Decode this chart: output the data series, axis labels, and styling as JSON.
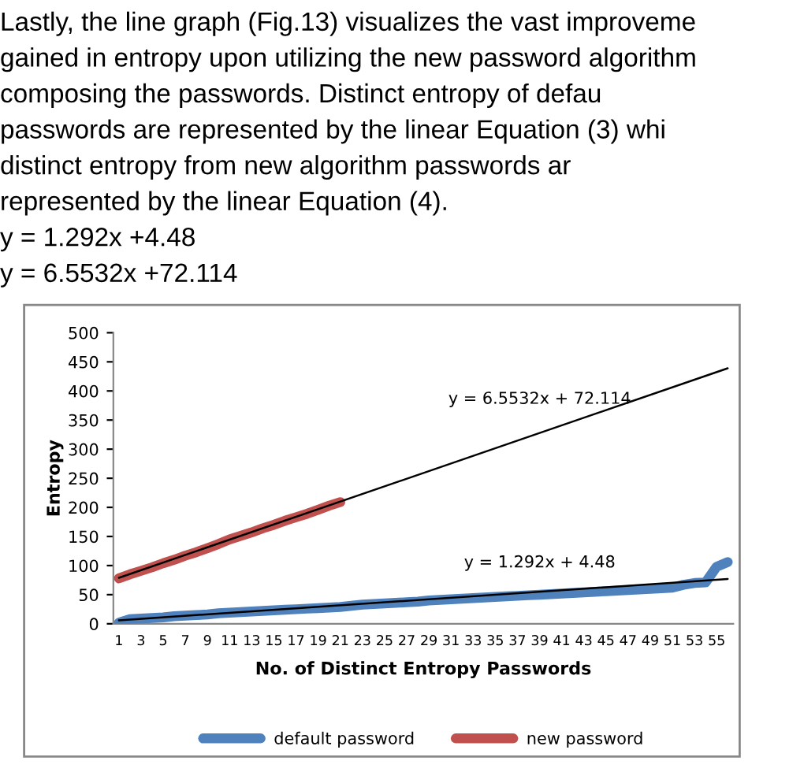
{
  "chart_data": {
    "type": "line",
    "xlabel": "No. of Distinct Entropy Passwords",
    "ylabel": "Entropy",
    "xlim": [
      0.5,
      56.5
    ],
    "xticks": [
      1,
      3,
      5,
      7,
      9,
      11,
      13,
      15,
      17,
      19,
      21,
      23,
      25,
      27,
      29,
      31,
      33,
      35,
      37,
      39,
      41,
      43,
      45,
      47,
      49,
      51,
      53,
      55
    ],
    "ylim": [
      0,
      500
    ],
    "yticks": [
      0,
      50,
      100,
      150,
      200,
      250,
      300,
      350,
      400,
      450,
      500
    ],
    "grid": false,
    "legend": "bottom",
    "marker": "none",
    "line_style": "solid",
    "series": [
      {
        "name": "default password",
        "color": "#4f81bd",
        "x": [
          1,
          2,
          3,
          4,
          5,
          6,
          7,
          8,
          9,
          10,
          11,
          12,
          13,
          14,
          15,
          16,
          17,
          18,
          19,
          20,
          21,
          22,
          23,
          24,
          25,
          26,
          27,
          28,
          29,
          30,
          31,
          32,
          33,
          34,
          35,
          36,
          37,
          38,
          39,
          40,
          41,
          42,
          43,
          44,
          45,
          46,
          47,
          48,
          49,
          50,
          51,
          52,
          53,
          54,
          55,
          56
        ],
        "values": [
          2,
          8,
          9,
          10,
          11,
          13,
          14,
          15,
          16,
          18,
          19,
          20,
          21,
          22,
          23,
          24,
          25,
          26,
          27,
          28,
          29,
          31,
          33,
          34,
          35,
          36,
          37,
          38,
          40,
          41,
          42,
          43,
          44,
          45,
          46,
          47,
          48,
          49,
          50,
          51,
          52,
          53,
          54,
          55,
          56,
          57,
          58,
          59,
          60,
          61,
          62,
          67,
          70,
          71,
          98,
          106
        ]
      },
      {
        "name": "new password",
        "color": "#c0504d",
        "x": [
          1,
          2,
          3,
          4,
          5,
          6,
          7,
          8,
          9,
          10,
          11,
          12,
          13,
          14,
          15,
          16,
          17,
          18,
          19,
          20,
          21
        ],
        "values": [
          78,
          85,
          91,
          97,
          104,
          110,
          117,
          123,
          130,
          137,
          145,
          151,
          157,
          164,
          170,
          177,
          183,
          189,
          196,
          203,
          209
        ]
      },
      {
        "type": "line",
        "name": "y = 6.5532x + 72.114",
        "color": "#000000",
        "x": [
          1,
          56
        ],
        "values": [
          79,
          439
        ]
      },
      {
        "type": "line",
        "name": "y = 1.292x + 4.48",
        "color": "#000000",
        "x": [
          1,
          56
        ],
        "values": [
          6,
          77
        ]
      }
    ],
    "annotations": [
      "Lastly, the line graph (Fig.13) visualizes the vast improveme",
      "gained in entropy upon utilizing the new password algorithm",
      "composing the passwords. Distinct entropy of defau",
      "passwords are represented by the linear Equation (3) whi",
      "distinct entropy from new algorithm passwords ar",
      "represented by the linear Equation (4).",
      "y = 1.292x +4.48",
      "y = 6.5532x +72.114"
    ]
  }
}
